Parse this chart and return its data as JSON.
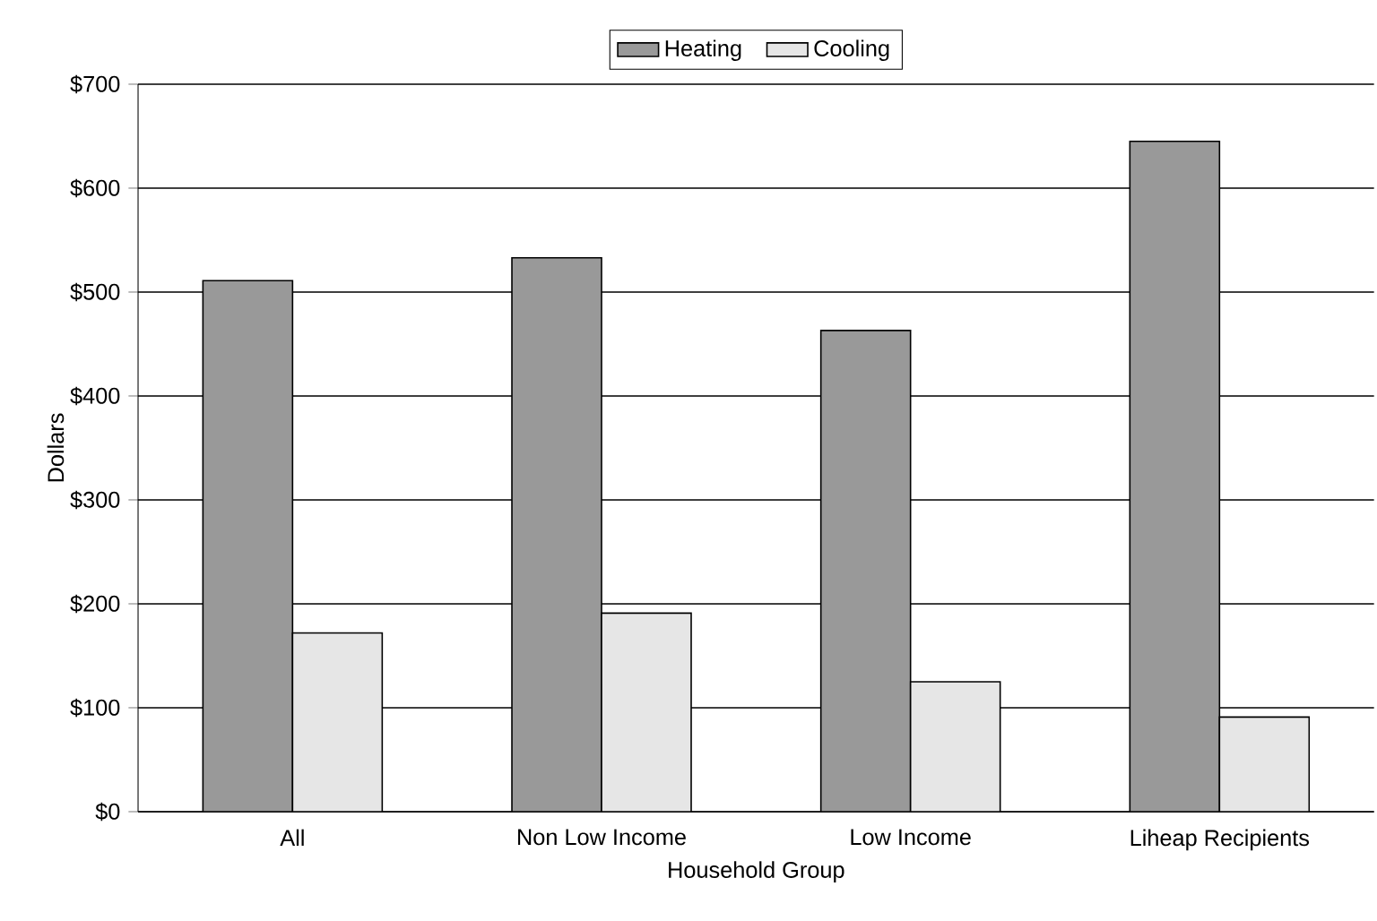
{
  "chart_data": {
    "type": "bar",
    "xlabel": "Household Group",
    "ylabel": "Dollars",
    "categories": [
      "All",
      "Non  Low Income",
      "Low Income",
      "Liheap Recipients"
    ],
    "series": [
      {
        "name": "Heating",
        "color": "#999999",
        "values": [
          511,
          533,
          463,
          645
        ]
      },
      {
        "name": "Cooling",
        "color": "#e6e6e6",
        "values": [
          172,
          191,
          125,
          91
        ]
      }
    ],
    "ylim": [
      0,
      700
    ],
    "yticks": [
      {
        "value": 0,
        "label": "$0"
      },
      {
        "value": 100,
        "label": "$100"
      },
      {
        "value": 200,
        "label": "$200"
      },
      {
        "value": 300,
        "label": "$300"
      },
      {
        "value": 400,
        "label": "$400"
      },
      {
        "value": 500,
        "label": "$500"
      },
      {
        "value": 600,
        "label": "$600"
      },
      {
        "value": 700,
        "label": "$700"
      }
    ],
    "grid": "y",
    "legend": "top"
  }
}
